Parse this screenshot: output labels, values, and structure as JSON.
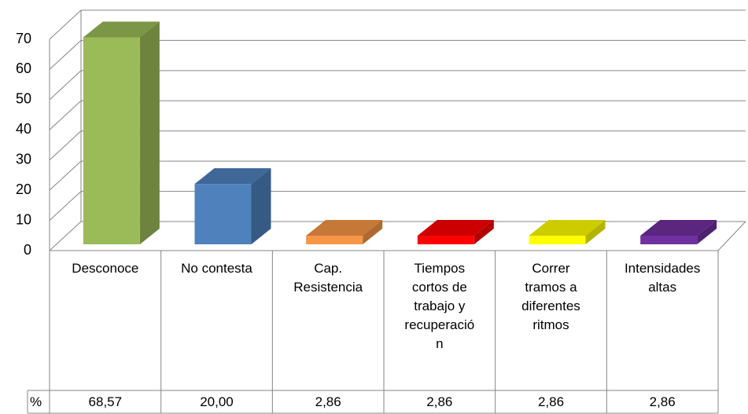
{
  "chart_data": {
    "type": "bar3d",
    "categories": [
      "Desconoce",
      "No contesta",
      "Cap. Resistencia",
      "Tiempos cortos de trabajo y recuperación",
      "Correr tramos a diferentes ritmos",
      "Intensidades altas"
    ],
    "series": [
      {
        "name": "%",
        "values": [
          68.57,
          20.0,
          2.86,
          2.86,
          2.86,
          2.86
        ],
        "value_labels": [
          "68,57",
          "20,00",
          "2,86",
          "2,86",
          "2,86",
          "2,86"
        ],
        "colors": [
          "#9bbb59",
          "#4f81bd",
          "#f79646",
          "#ff0000",
          "#ffff00",
          "#7030a0"
        ]
      }
    ],
    "ylim": [
      0,
      70
    ],
    "yticks": [
      0,
      10,
      20,
      30,
      40,
      50,
      60,
      70
    ],
    "grid": true
  }
}
